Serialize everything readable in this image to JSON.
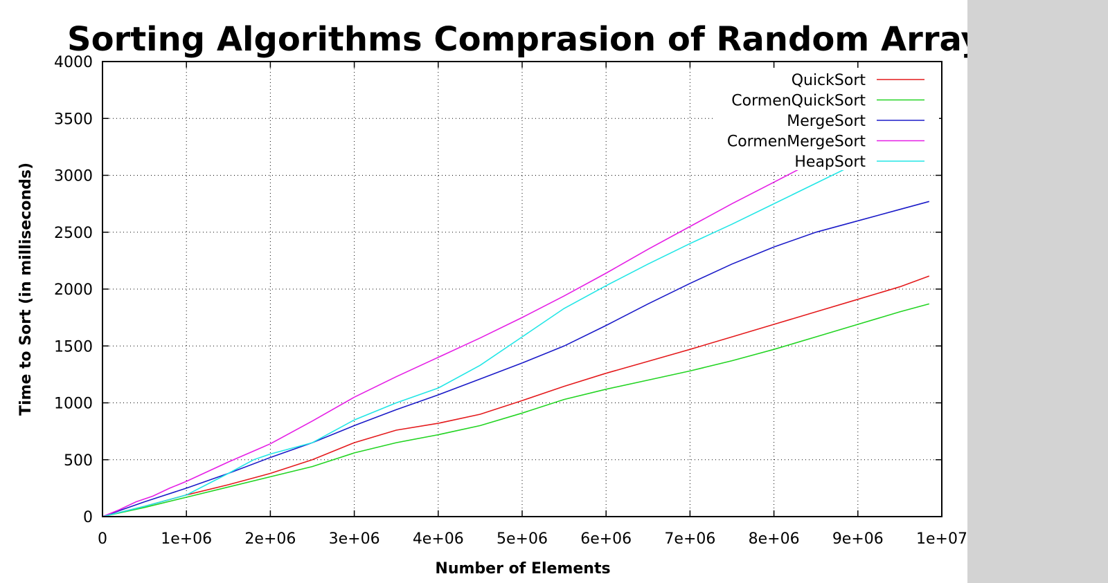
{
  "chart_data": {
    "type": "line",
    "title": "Sorting Algorithms Comprasion of Random Arrays",
    "xlabel": "Number of Elements",
    "ylabel": "Time to Sort (in milliseconds)",
    "xlim": [
      0,
      10000000
    ],
    "ylim": [
      0,
      4000
    ],
    "grid": true,
    "legend_position": "top-right",
    "xticks": [
      0,
      1000000,
      2000000,
      3000000,
      4000000,
      5000000,
      6000000,
      7000000,
      8000000,
      9000000,
      10000000
    ],
    "xtick_labels": [
      "0",
      "1e+06",
      "2e+06",
      "3e+06",
      "4e+06",
      "5e+06",
      "6e+06",
      "7e+06",
      "8e+06",
      "9e+06",
      "1e+07"
    ],
    "yticks": [
      0,
      500,
      1000,
      1500,
      2000,
      2500,
      3000,
      3500,
      4000
    ],
    "ytick_labels": [
      "0",
      "500",
      "1000",
      "1500",
      "2000",
      "2500",
      "3000",
      "3500",
      "4000"
    ],
    "series": [
      {
        "name": "QuickSort",
        "color": "#e41a1c",
        "x": [
          0,
          500000,
          1000000,
          1500000,
          2000000,
          2500000,
          3000000,
          3500000,
          4000000,
          4500000,
          5000000,
          5500000,
          6000000,
          6500000,
          7000000,
          7500000,
          8000000,
          8500000,
          9000000,
          9500000,
          9850000
        ],
        "y": [
          0,
          90,
          190,
          280,
          380,
          500,
          650,
          760,
          820,
          900,
          1020,
          1145,
          1260,
          1365,
          1470,
          1580,
          1690,
          1800,
          1910,
          2020,
          2115
        ]
      },
      {
        "name": "CormenQuickSort",
        "color": "#22d422",
        "x": [
          0,
          500000,
          1000000,
          1500000,
          2000000,
          2500000,
          3000000,
          3500000,
          4000000,
          4500000,
          5000000,
          5500000,
          6000000,
          6500000,
          7000000,
          7500000,
          8000000,
          8500000,
          9000000,
          9500000,
          9850000
        ],
        "y": [
          0,
          80,
          170,
          260,
          350,
          440,
          560,
          650,
          720,
          800,
          910,
          1030,
          1120,
          1200,
          1280,
          1370,
          1470,
          1580,
          1690,
          1800,
          1870
        ]
      },
      {
        "name": "MergeSort",
        "color": "#1a1ac8",
        "x": [
          0,
          500000,
          1000000,
          1500000,
          2000000,
          2500000,
          3000000,
          3500000,
          4000000,
          4500000,
          5000000,
          5500000,
          6000000,
          6500000,
          7000000,
          7500000,
          8000000,
          8500000,
          9000000,
          9500000,
          9850000
        ],
        "y": [
          0,
          130,
          250,
          380,
          520,
          650,
          800,
          940,
          1070,
          1210,
          1350,
          1500,
          1680,
          1870,
          2050,
          2220,
          2370,
          2500,
          2600,
          2700,
          2770
        ]
      },
      {
        "name": "CormenMergeSort",
        "color": "#e51ee5",
        "x": [
          0,
          200000,
          400000,
          600000,
          800000,
          1000000,
          1500000,
          2000000,
          2500000,
          3000000,
          3500000,
          4000000,
          4500000,
          5000000,
          5500000,
          6000000,
          6500000,
          7000000,
          7500000,
          8000000,
          8500000,
          9000000,
          9500000,
          9850000
        ],
        "y": [
          0,
          60,
          130,
          180,
          250,
          310,
          480,
          640,
          840,
          1050,
          1230,
          1400,
          1570,
          1750,
          1940,
          2140,
          2350,
          2550,
          2750,
          2940,
          3130,
          3300,
          3460,
          3570
        ]
      },
      {
        "name": "HeapSort",
        "color": "#22e6e6",
        "x": [
          0,
          500000,
          1000000,
          1500000,
          1800000,
          2000000,
          2500000,
          3000000,
          3500000,
          4000000,
          4500000,
          5000000,
          5500000,
          6000000,
          6500000,
          7000000,
          7500000,
          8000000,
          8500000,
          9000000,
          9500000,
          9850000
        ],
        "y": [
          0,
          90,
          190,
          380,
          500,
          550,
          650,
          850,
          1000,
          1130,
          1330,
          1580,
          1830,
          2030,
          2220,
          2400,
          2570,
          2750,
          2930,
          3110,
          3300,
          3430
        ]
      }
    ]
  }
}
